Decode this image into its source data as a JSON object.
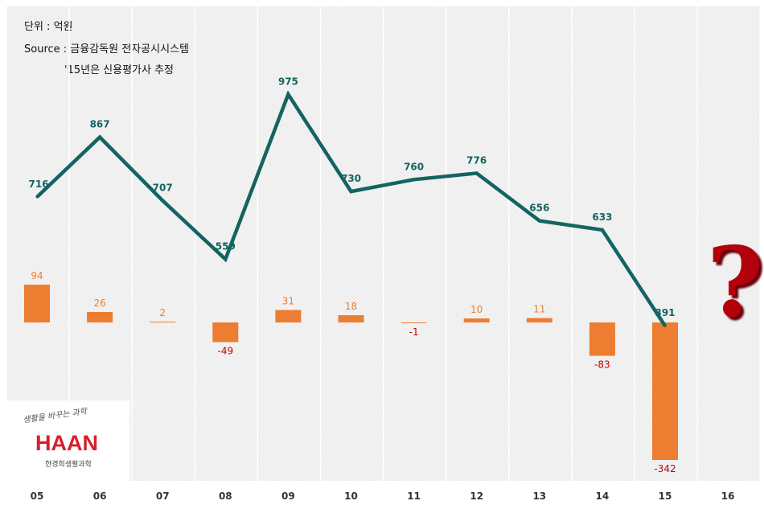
{
  "notes": {
    "unit": "단위 : 억원",
    "source": "Source : 금융감독원 전자공시시스템",
    "estimate": "'15년은 신용평가사 추정"
  },
  "logo": {
    "slogan": "생활을 바꾸는 과학",
    "brand": "HAAN",
    "sub": "한경희생활과학"
  },
  "chart_data": {
    "type": "bar+line",
    "categories": [
      "05",
      "06",
      "07",
      "08",
      "09",
      "10",
      "11",
      "12",
      "13",
      "14",
      "15",
      "16"
    ],
    "series": [
      {
        "type": "line",
        "values": [
          716,
          867,
          707,
          559,
          975,
          730,
          760,
          776,
          656,
          633,
          391,
          null
        ]
      },
      {
        "type": "bar",
        "values": [
          94,
          26,
          2,
          -49,
          31,
          18,
          -1,
          10,
          11,
          -83,
          -342,
          null
        ]
      }
    ],
    "annotation": "?",
    "grid": "vertical",
    "colors": {
      "line": "#136461",
      "bar": "#ed7d31",
      "positive_label": "#ed7d31",
      "negative_label": "#c00000",
      "question_mark": "#b3000c"
    }
  }
}
